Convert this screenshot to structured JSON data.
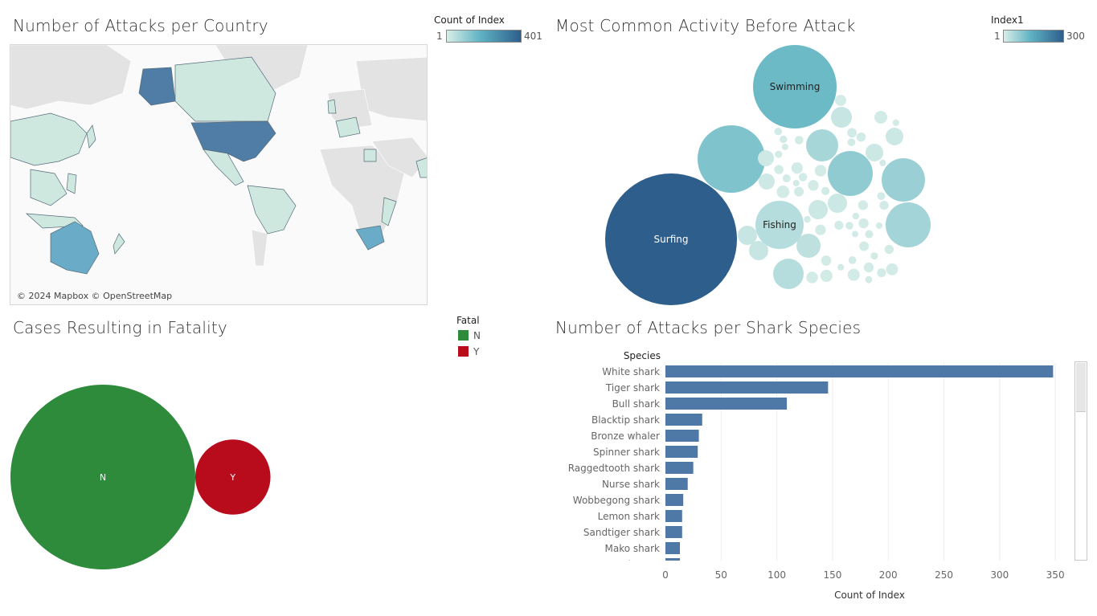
{
  "panels": {
    "map": {
      "title": "Number of Attacks per Country",
      "legend": {
        "title": "Count of Index",
        "min": "1",
        "max": "401"
      },
      "credit": "© 2024 Mapbox © OpenStreetMap"
    },
    "activity": {
      "title": "Most Common Activity Before Attack",
      "legend": {
        "title": "Index1",
        "min": "1",
        "max": "300"
      }
    },
    "fatality": {
      "title": "Cases Resulting in Fatality",
      "legend": {
        "title": "Fatal",
        "items": [
          {
            "label": "N",
            "color": "#2e8b3c"
          },
          {
            "label": "Y",
            "color": "#b80c1c"
          }
        ]
      }
    },
    "species": {
      "title": "Number of Attacks per Shark Species"
    }
  },
  "chart_data": [
    {
      "type": "bubble",
      "title": "Most Common Activity Before Attack",
      "labeled_bubbles": [
        {
          "label": "Surfing",
          "value": 300
        },
        {
          "label": "Swimming",
          "value": 120
        },
        {
          "label": "Fishing",
          "value": 40
        }
      ],
      "color_range": [
        1,
        300
      ]
    },
    {
      "type": "bubble",
      "title": "Cases Resulting in Fatality",
      "categories": [
        "N",
        "Y"
      ],
      "values": [
        1300,
        215
      ],
      "colors": [
        "#2e8b3c",
        "#b80c1c"
      ]
    },
    {
      "type": "bar",
      "orientation": "horizontal",
      "title": "Number of Attacks per Shark Species",
      "ycategory_label": "Species",
      "xlabel": "Count of Index",
      "categories": [
        "White shark",
        "Tiger shark",
        "Bull shark",
        "Blacktip shark",
        "Bronze whaler",
        "Spinner shark",
        "Raggedtooth shark",
        "Nurse shark",
        "Wobbegong shark",
        "Lemon shark",
        "Sandtiger shark",
        "Mako shark",
        "Unknown"
      ],
      "values": [
        348,
        146,
        109,
        33,
        30,
        29,
        25,
        20,
        16,
        15,
        15,
        13,
        13
      ],
      "xticks": [
        0,
        50,
        100,
        150,
        200,
        250,
        300,
        350
      ],
      "xlim": [
        0,
        360
      ],
      "color": "#4e79a7"
    }
  ]
}
